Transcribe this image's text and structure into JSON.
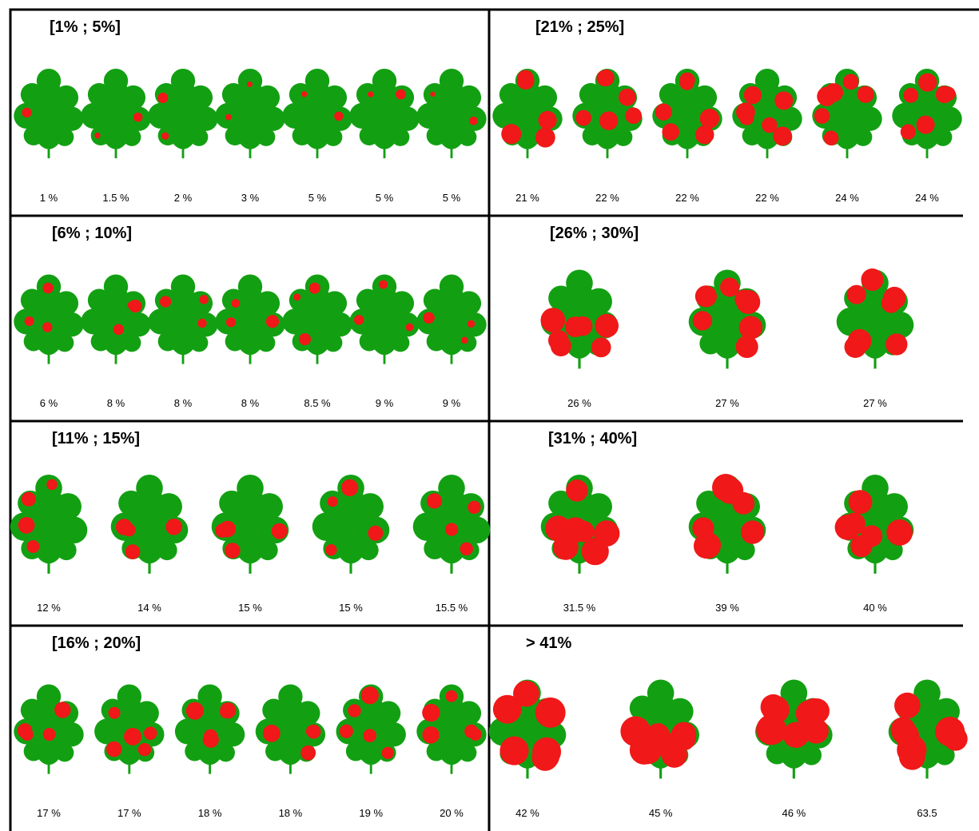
{
  "panels": [
    {
      "title": "[1% ; 5%]",
      "labels": [
        "1 %",
        "1.5 %",
        "2 %",
        "3 %",
        "5 %",
        "5 %",
        "5 %"
      ]
    },
    {
      "title": "[6% ; 10%]",
      "labels": [
        "6 %",
        "8 %",
        "8 %",
        "8 %",
        "8.5 %",
        "9 %",
        "9 %"
      ]
    },
    {
      "title": "[11% ; 15%]",
      "labels": [
        "12 %",
        "14 %",
        "15 %",
        "15 %",
        "15.5 %"
      ]
    },
    {
      "title": "[16% ; 20%]",
      "labels": [
        "17 %",
        "17 %",
        "18 %",
        "18 %",
        "19 %",
        "20 %"
      ]
    },
    {
      "title": "[21% ; 25%]",
      "labels": [
        "21 %",
        "22 %",
        "22 %",
        "22 %",
        "24 %",
        "24 %"
      ]
    },
    {
      "title": "[26% ; 30%]",
      "labels": [
        "26 %",
        "27 %",
        "27 %"
      ]
    },
    {
      "title": "[31% ; 40%]",
      "labels": [
        "31.5 %",
        "39 %",
        "40 %"
      ]
    },
    {
      "title": "> 41%",
      "labels": [
        "42 %",
        "45 %",
        "46 %",
        "63.5"
      ]
    }
  ]
}
